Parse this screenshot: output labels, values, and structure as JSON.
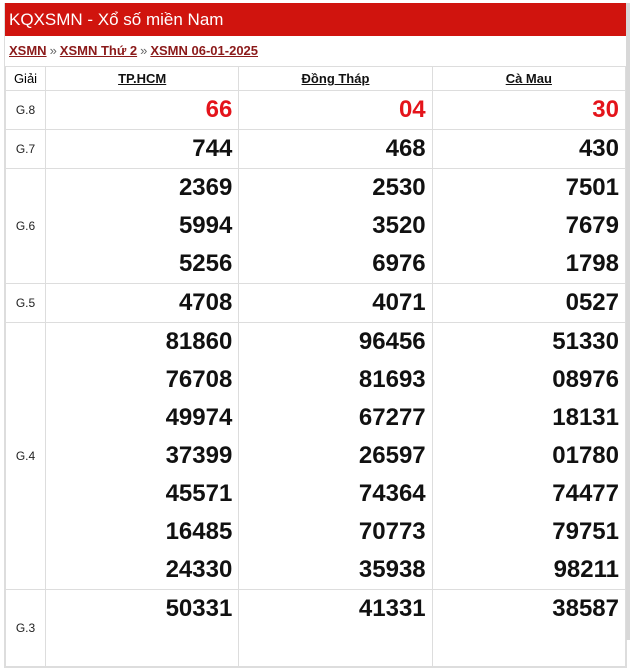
{
  "header": {
    "title": "KQXSMN - Xổ số miền Nam"
  },
  "breadcrumb": [
    {
      "label": "XSMN"
    },
    {
      "label": "XSMN Thứ 2"
    },
    {
      "label": "XSMN 06-01-2025"
    }
  ],
  "breadcrumb_separator": "»",
  "table": {
    "giai_header": "Giải",
    "provinces": [
      "TP.HCM",
      "Đồng Tháp",
      "Cà Mau"
    ],
    "prize_color": "#e4141b",
    "rows": [
      {
        "label": "G.8",
        "highlight": true,
        "values": [
          [
            "66"
          ],
          [
            "04"
          ],
          [
            "30"
          ]
        ]
      },
      {
        "label": "G.7",
        "values": [
          [
            "744"
          ],
          [
            "468"
          ],
          [
            "430"
          ]
        ]
      },
      {
        "label": "G.6",
        "values": [
          [
            "2369",
            "5994",
            "5256"
          ],
          [
            "2530",
            "3520",
            "6976"
          ],
          [
            "7501",
            "7679",
            "1798"
          ]
        ]
      },
      {
        "label": "G.5",
        "values": [
          [
            "4708"
          ],
          [
            "4071"
          ],
          [
            "0527"
          ]
        ]
      },
      {
        "label": "G.4",
        "values": [
          [
            "81860",
            "76708",
            "49974",
            "37399",
            "45571",
            "16485",
            "24330"
          ],
          [
            "96456",
            "81693",
            "67277",
            "26597",
            "74364",
            "70773",
            "35938"
          ],
          [
            "51330",
            "08976",
            "18131",
            "01780",
            "74477",
            "79751",
            "98211"
          ]
        ]
      },
      {
        "label": "G.3",
        "partial": true,
        "values": [
          [
            "50331"
          ],
          [
            "41331"
          ],
          [
            "38587"
          ]
        ]
      }
    ]
  }
}
